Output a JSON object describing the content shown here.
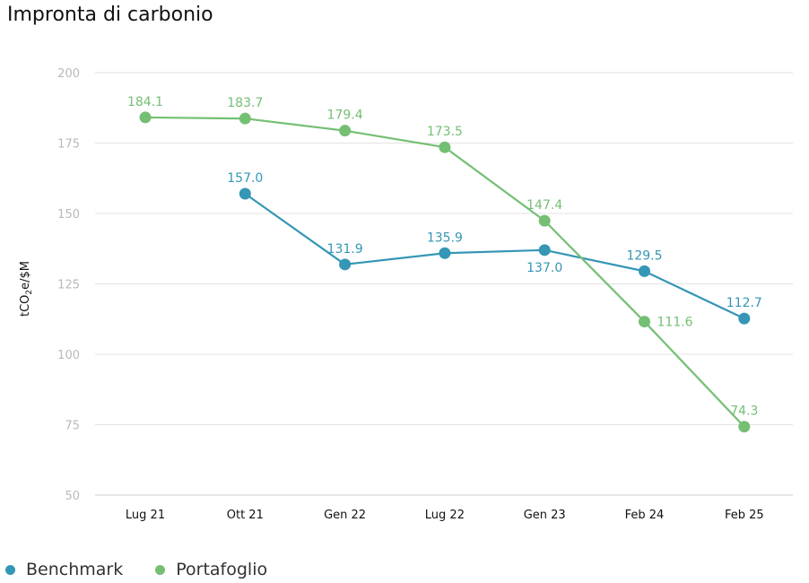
{
  "title": "Impronta di carbonio",
  "chart_data": {
    "type": "line",
    "title": "Impronta di carbonio",
    "ylabel": "tCO₂e/$M",
    "xlabel": "",
    "categories": [
      "Lug 21",
      "Ott 21",
      "Gen 22",
      "Lug 22",
      "Gen 23",
      "Feb 24",
      "Feb 25"
    ],
    "ylim": [
      50,
      200
    ],
    "yticks": [
      50,
      75,
      100,
      125,
      150,
      175,
      200
    ],
    "grid": true,
    "legend_position": "bottom-left",
    "series": [
      {
        "name": "Benchmark",
        "color": "#3596b5",
        "values": [
          null,
          157.0,
          131.9,
          135.9,
          137.0,
          129.5,
          112.7
        ],
        "labels": [
          null,
          "157.0",
          "131.9",
          "135.9",
          "137.0",
          "129.5",
          "112.7"
        ]
      },
      {
        "name": "Portafoglio",
        "color": "#74bf74",
        "values": [
          184.1,
          183.7,
          179.4,
          173.5,
          147.4,
          111.6,
          74.3
        ],
        "labels": [
          "184.1",
          "183.7",
          "179.4",
          "173.5",
          "147.4",
          "111.6",
          "74.3"
        ]
      }
    ]
  }
}
